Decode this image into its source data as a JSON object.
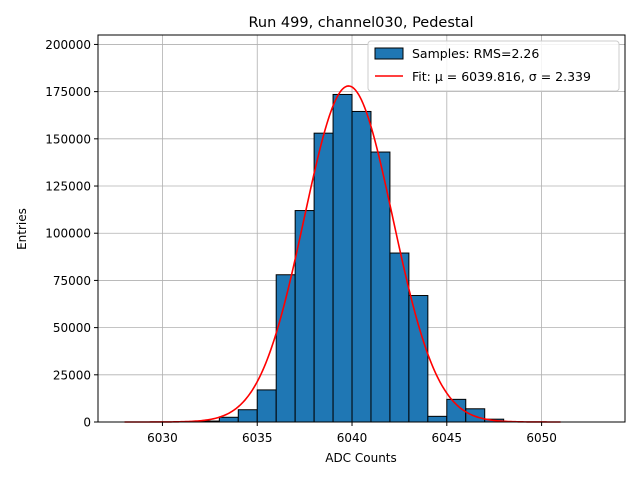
{
  "chart_data": {
    "type": "bar",
    "title": "Run 499, channel030, Pedestal",
    "xlabel": "ADC Counts",
    "ylabel": "Entries",
    "xlim": [
      6026.6,
      6054.4
    ],
    "ylim": [
      0,
      205000
    ],
    "xticks": [
      6030,
      6035,
      6040,
      6045,
      6050
    ],
    "yticks": [
      0,
      25000,
      50000,
      75000,
      100000,
      125000,
      150000,
      175000,
      200000
    ],
    "grid": true,
    "legend_position": "top-right",
    "bins": [
      {
        "left": 6032,
        "right": 6033,
        "value": 500
      },
      {
        "left": 6033,
        "right": 6034,
        "value": 2500
      },
      {
        "left": 6034,
        "right": 6035,
        "value": 6500
      },
      {
        "left": 6035,
        "right": 6036,
        "value": 17000
      },
      {
        "left": 6036,
        "right": 6037,
        "value": 78000
      },
      {
        "left": 6037,
        "right": 6038,
        "value": 112000
      },
      {
        "left": 6038,
        "right": 6039,
        "value": 153000
      },
      {
        "left": 6039,
        "right": 6040,
        "value": 173500
      },
      {
        "left": 6040,
        "right": 6041,
        "value": 164500
      },
      {
        "left": 6041,
        "right": 6042,
        "value": 143000
      },
      {
        "left": 6042,
        "right": 6043,
        "value": 89500
      },
      {
        "left": 6043,
        "right": 6044,
        "value": 67000
      },
      {
        "left": 6044,
        "right": 6045,
        "value": 3000
      },
      {
        "left": 6045,
        "right": 6046,
        "value": 12000
      },
      {
        "left": 6046,
        "right": 6047,
        "value": 7000
      },
      {
        "left": 6047,
        "right": 6048,
        "value": 1500
      }
    ],
    "fit": {
      "mu": 6039.816,
      "sigma": 2.339,
      "amplitude": 178000,
      "x_range": [
        6028,
        6051
      ]
    },
    "series": [
      {
        "name": "Samples: RMS=2.26",
        "kind": "histogram",
        "color": "#1f77b4"
      },
      {
        "name": "Fit: μ = 6039.816, σ = 2.339",
        "kind": "line",
        "color": "#ff0000"
      }
    ]
  }
}
